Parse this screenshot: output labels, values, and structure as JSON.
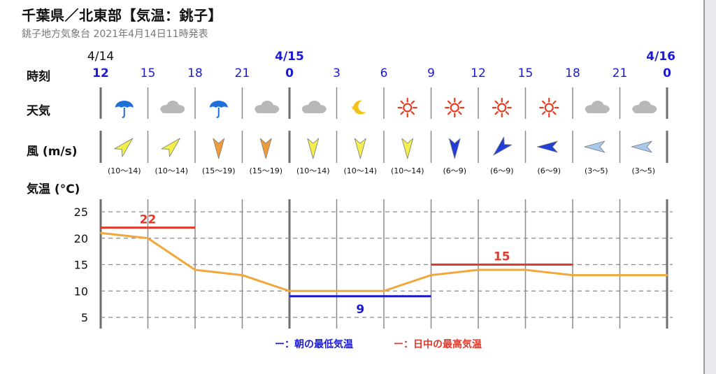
{
  "header": {
    "title": "千葉県／北東部【気温：銚子】",
    "subtitle": "銚子地方気象台 2021年4月14日11時発表"
  },
  "rows": {
    "time_label": "時刻",
    "weather_label": "天気",
    "wind_label": "風 (m/s)",
    "temp_label": "気温 (°C)"
  },
  "dates": [
    {
      "slot": 0,
      "label": "4/14"
    },
    {
      "slot": 4,
      "label": "4/15"
    },
    {
      "slot": 12,
      "label": "4/16"
    }
  ],
  "hours": [
    "12",
    "15",
    "18",
    "21",
    "0",
    "3",
    "6",
    "9",
    "12",
    "15",
    "18",
    "21",
    "0"
  ],
  "weather": [
    "umbrella-icon",
    "cloud-icon",
    "umbrella-icon",
    "cloud-icon",
    "cloud-icon",
    "moon-icon",
    "sun-icon",
    "sun-icon",
    "sun-icon",
    "sun-icon",
    "cloud-icon",
    "cloud-icon"
  ],
  "wind": [
    {
      "range": "(10〜14)",
      "dir": "SW",
      "color": "#f2ee4c"
    },
    {
      "range": "(10〜14)",
      "dir": "SW",
      "color": "#f2ee4c"
    },
    {
      "range": "(15〜19)",
      "dir": "N",
      "color": "#f19a3a"
    },
    {
      "range": "(15〜19)",
      "dir": "N",
      "color": "#f19a3a"
    },
    {
      "range": "(10〜14)",
      "dir": "N",
      "color": "#f2ee4c"
    },
    {
      "range": "(10〜14)",
      "dir": "N",
      "color": "#f2ee4c"
    },
    {
      "range": "(10〜14)",
      "dir": "N",
      "color": "#f2ee4c"
    },
    {
      "range": "(6〜9)",
      "dir": "N",
      "color": "#1f3fd6"
    },
    {
      "range": "(6〜9)",
      "dir": "NE",
      "color": "#1f3fd6"
    },
    {
      "range": "(6〜9)",
      "dir": "E",
      "color": "#1f3fd6"
    },
    {
      "range": "(3〜5)",
      "dir": "E",
      "color": "#a8c8ee"
    },
    {
      "range": "(3〜5)",
      "dir": "E",
      "color": "#a8c8ee"
    }
  ],
  "chart_data": {
    "type": "line",
    "x": [
      "12",
      "15",
      "18",
      "21",
      "0",
      "3",
      "6",
      "9",
      "12",
      "15",
      "18",
      "21",
      "0"
    ],
    "ylim": [
      3,
      26
    ],
    "yticks": [
      5,
      10,
      15,
      20,
      25
    ],
    "series": [
      {
        "values": [
          21,
          20,
          14,
          13,
          10,
          10,
          10,
          13,
          14,
          14,
          13,
          13,
          13
        ]
      }
    ],
    "min_max_bars": [
      {
        "kind": "max",
        "value": 22,
        "label": "22",
        "from": 0,
        "to": 2
      },
      {
        "kind": "min",
        "value": 9,
        "label": "9",
        "from": 4,
        "to": 7
      },
      {
        "kind": "max",
        "value": 15,
        "label": "15",
        "from": 7,
        "to": 10
      }
    ],
    "legend": [
      {
        "text": "ー：朝の最低気温"
      },
      {
        "text": "ー：日中の最高気温"
      }
    ]
  },
  "colors": {
    "line": "#f0a83c",
    "max": "#e03a2c",
    "min": "#1a1ad6",
    "date_blue": "#1a1ad6",
    "grid": "#8a8a8a",
    "separator": "#6e6e6e",
    "icon_cloud": "#b8b8b8",
    "icon_umbrella": "#1e6fd8",
    "icon_sun": "#ea3b1f",
    "icon_moon": "#f2c21b"
  }
}
